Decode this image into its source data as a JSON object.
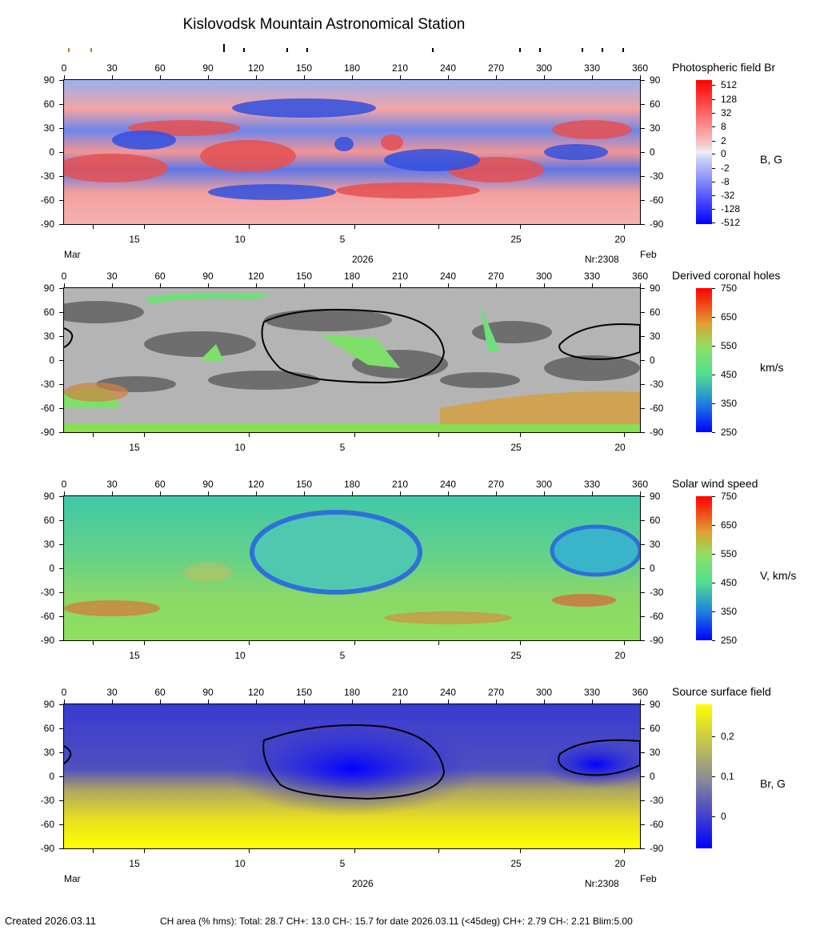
{
  "title": "Kislovodsk Mountain Astronomical Station",
  "lon_ticks": [
    "0",
    "30",
    "60",
    "90",
    "120",
    "150",
    "180",
    "210",
    "240",
    "270",
    "300",
    "330",
    "360"
  ],
  "lat_ticks": [
    "90",
    "60",
    "30",
    "0",
    "-30",
    "-60",
    "-90"
  ],
  "date_ticks": [
    "15",
    "10",
    "5",
    "25",
    "20"
  ],
  "mar_label": "Mar",
  "feb_label": "Feb",
  "year_label": "2026",
  "rotation_label": "Nr:2308",
  "panels": [
    {
      "title": "Photospheric field Br",
      "unit": "B, G",
      "scale": [
        "512",
        "128",
        "32",
        "8",
        "2",
        "0",
        "-2",
        "-8",
        "-32",
        "-128",
        "-512"
      ]
    },
    {
      "title": "Derived coronal holes",
      "unit": "km/s",
      "scale": [
        "750",
        "650",
        "550",
        "450",
        "350",
        "250"
      ]
    },
    {
      "title": "Solar wind speed",
      "unit": "V, km/s",
      "scale": [
        "750",
        "650",
        "550",
        "450",
        "350",
        "250"
      ]
    },
    {
      "title": "Source surface field",
      "unit": "Br, G",
      "scale": [
        "0,2",
        "0,1",
        "0"
      ]
    }
  ],
  "footer": {
    "created": "Created  2026.03.11",
    "ch_area": "CH area (% hms): Total: 28.7 CH+: 13.0   CH-: 15.7 for date 2026.03.11 (<45deg) CH+: 2.79    CH-: 2.21 Blim:5.00"
  }
}
